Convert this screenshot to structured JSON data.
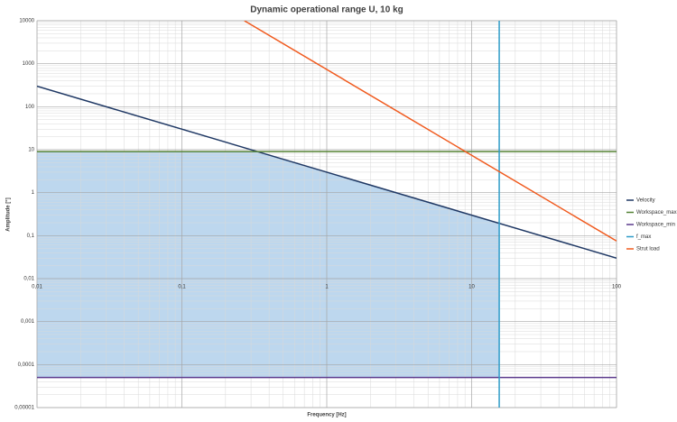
{
  "chart_data": {
    "type": "line",
    "title": "Dynamic operational range U, 10 kg",
    "x_label": "Frequency [Hz]",
    "y_label": "Amplitude [°]",
    "x_log": true,
    "y_log": true,
    "grid": true,
    "legend": "right",
    "xlim": [
      0.01,
      100
    ],
    "xticks": [
      {
        "value": 0.01,
        "label": "0,01"
      },
      {
        "value": 0.1,
        "label": "0,1"
      },
      1,
      10,
      100
    ],
    "ylim": [
      1e-05,
      10000
    ],
    "yticks": [
      {
        "value": 1e-05,
        "label": "0,00001"
      },
      {
        "value": 0.0001,
        "label": "0,0001"
      },
      {
        "value": 0.001,
        "label": "0,001"
      },
      {
        "value": 0.01,
        "label": "0,01"
      },
      {
        "value": 0.1,
        "label": "0,1"
      },
      1,
      10,
      100,
      1000,
      10000
    ],
    "series": [
      {
        "name": "Velocity",
        "color": "#1f3864",
        "x": [
          0.01,
          100
        ],
        "values": [
          300,
          0.03
        ]
      },
      {
        "name": "Workspace_max",
        "color": "#548235",
        "x": [
          0.01,
          100
        ],
        "values": [
          9,
          9
        ]
      },
      {
        "name": "Workspace_min",
        "color": "#5b3a8c",
        "x": [
          0.01,
          100
        ],
        "values": [
          5e-05,
          5e-05
        ]
      },
      {
        "name": "f_max",
        "color": "#2e9cc8",
        "x": [
          15.5,
          15.5
        ],
        "values": [
          1e-05,
          10000
        ]
      },
      {
        "name": "Strut load",
        "color": "#f05a1e",
        "x": [
          0.27,
          100
        ],
        "values": [
          10000,
          0.075
        ]
      }
    ]
  }
}
